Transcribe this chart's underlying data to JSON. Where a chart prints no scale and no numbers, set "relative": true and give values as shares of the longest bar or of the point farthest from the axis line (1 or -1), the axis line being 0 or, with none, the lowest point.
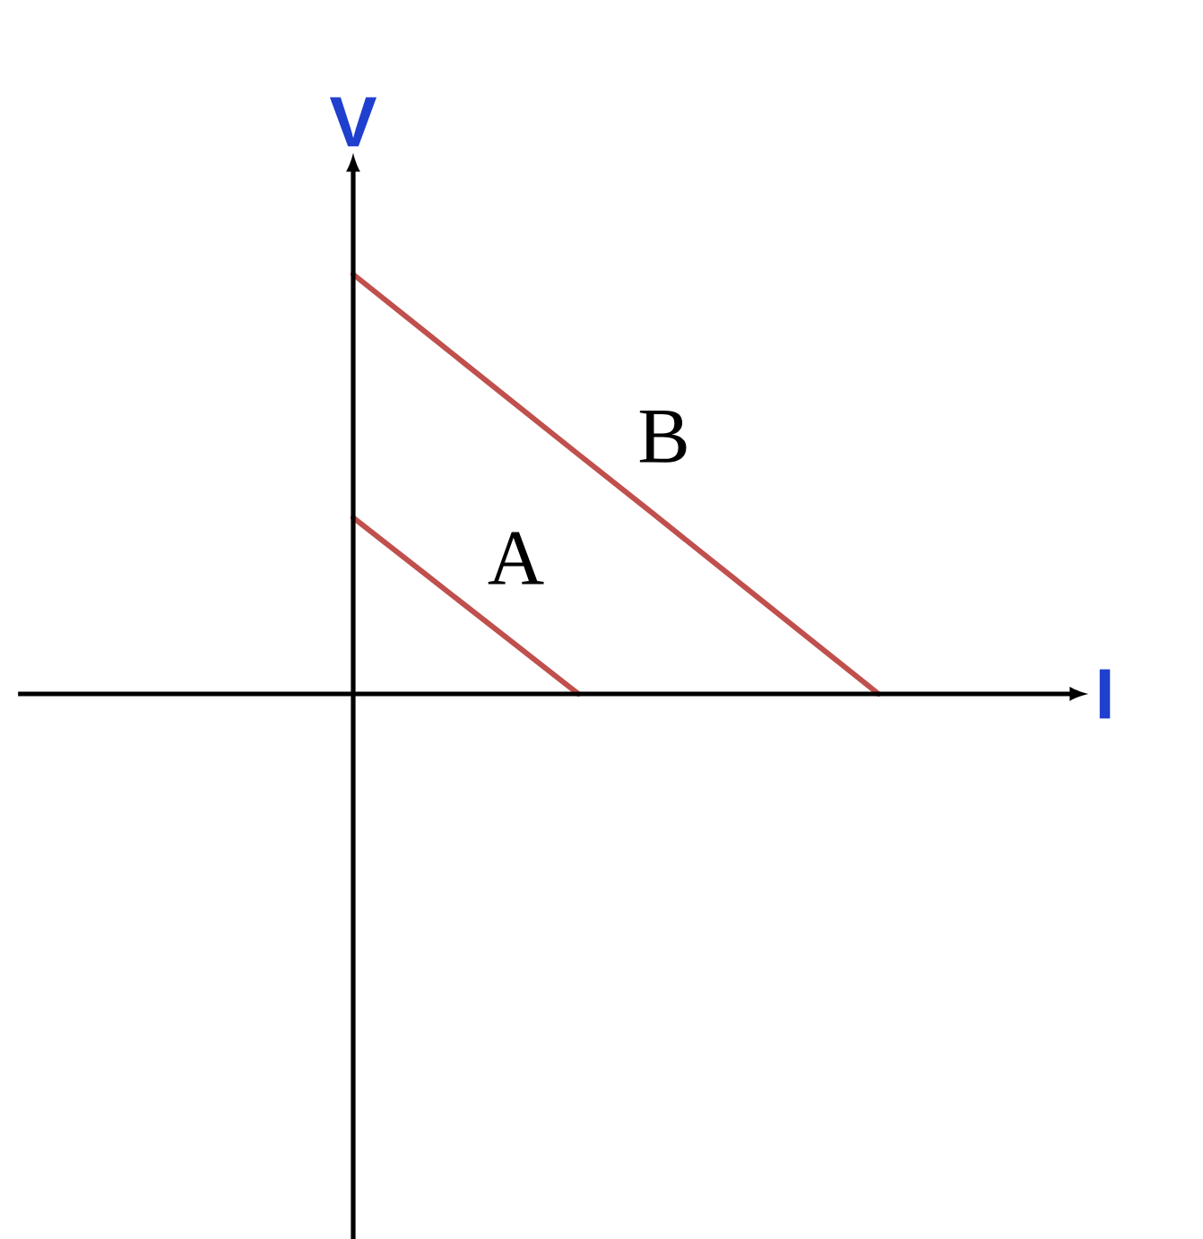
{
  "chart_data": {
    "type": "line",
    "relative": true,
    "xlabel": "I",
    "ylabel": "V",
    "marker": "none",
    "line_style": "solid",
    "categories": [
      null,
      null,
      null,
      null,
      null,
      null,
      null,
      null
    ],
    "series": [
      {
        "name": "A",
        "color": "#c0504d",
        "values": [
          0.42,
          0.28,
          0.14,
          0,
          null,
          null,
          null,
          null
        ]
      },
      {
        "name": "B",
        "color": "#c0504d",
        "values": [
          1,
          0.857,
          0.714,
          0.571,
          0.429,
          0.286,
          0.143,
          0
        ]
      }
    ]
  }
}
